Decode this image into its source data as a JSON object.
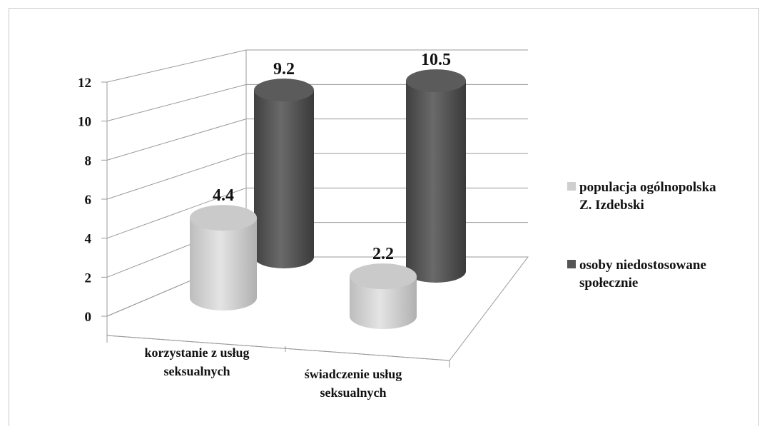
{
  "chart_data": {
    "type": "bar",
    "style": "3d-cylinder",
    "title": "",
    "xlabel": "",
    "ylabel": "",
    "ylim": [
      0,
      12
    ],
    "yticks": [
      "0",
      "2",
      "4",
      "6",
      "8",
      "10",
      "12"
    ],
    "categories": [
      [
        "korzystanie z usług",
        "seksualnych"
      ],
      [
        "świadczenie usług",
        "seksualnych"
      ]
    ],
    "series": [
      {
        "name": [
          "populacja ogólnopolska",
          "Z. Izdebski"
        ],
        "values": [
          4.4,
          2.2
        ],
        "labels": [
          "4.4",
          "2.2"
        ],
        "color": "#cfcfcf"
      },
      {
        "name": [
          "osoby niedostosowane",
          "społecznie"
        ],
        "values": [
          9.2,
          10.5
        ],
        "labels": [
          "9.2",
          "10.5"
        ],
        "color": "#555555"
      }
    ],
    "grid": true,
    "legend": "right"
  }
}
